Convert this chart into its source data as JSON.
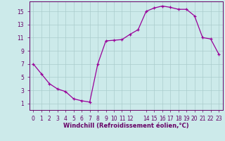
{
  "x_all": [
    0,
    1,
    2,
    3,
    4,
    5,
    6,
    7,
    8,
    9,
    10,
    11,
    12,
    13,
    14,
    15,
    16,
    17,
    18,
    19,
    20,
    21,
    22,
    23
  ],
  "y_all": [
    7.0,
    5.5,
    4.0,
    3.2,
    2.8,
    1.7,
    1.4,
    1.2,
    7.0,
    10.5,
    10.6,
    10.7,
    11.5,
    12.2,
    15.0,
    15.5,
    15.8,
    15.6,
    15.3,
    15.3,
    14.3,
    11.0,
    10.8,
    8.5
  ],
  "line_color": "#990099",
  "marker_color": "#990099",
  "bg_color": "#cceaea",
  "grid_color": "#aacccc",
  "xlabel": "Windchill (Refroidissement éolien,°C)",
  "xlabel_color": "#660066",
  "tick_color": "#660066",
  "ylim": [
    0,
    16.5
  ],
  "xlim": [
    -0.5,
    23.5
  ],
  "yticks": [
    1,
    3,
    5,
    7,
    9,
    11,
    13,
    15
  ],
  "xticks": [
    0,
    1,
    2,
    3,
    4,
    5,
    6,
    7,
    8,
    9,
    10,
    11,
    12,
    14,
    15,
    16,
    17,
    18,
    19,
    20,
    21,
    22,
    23
  ],
  "tick_fontsize": 5.5,
  "xlabel_fontsize": 6.0
}
